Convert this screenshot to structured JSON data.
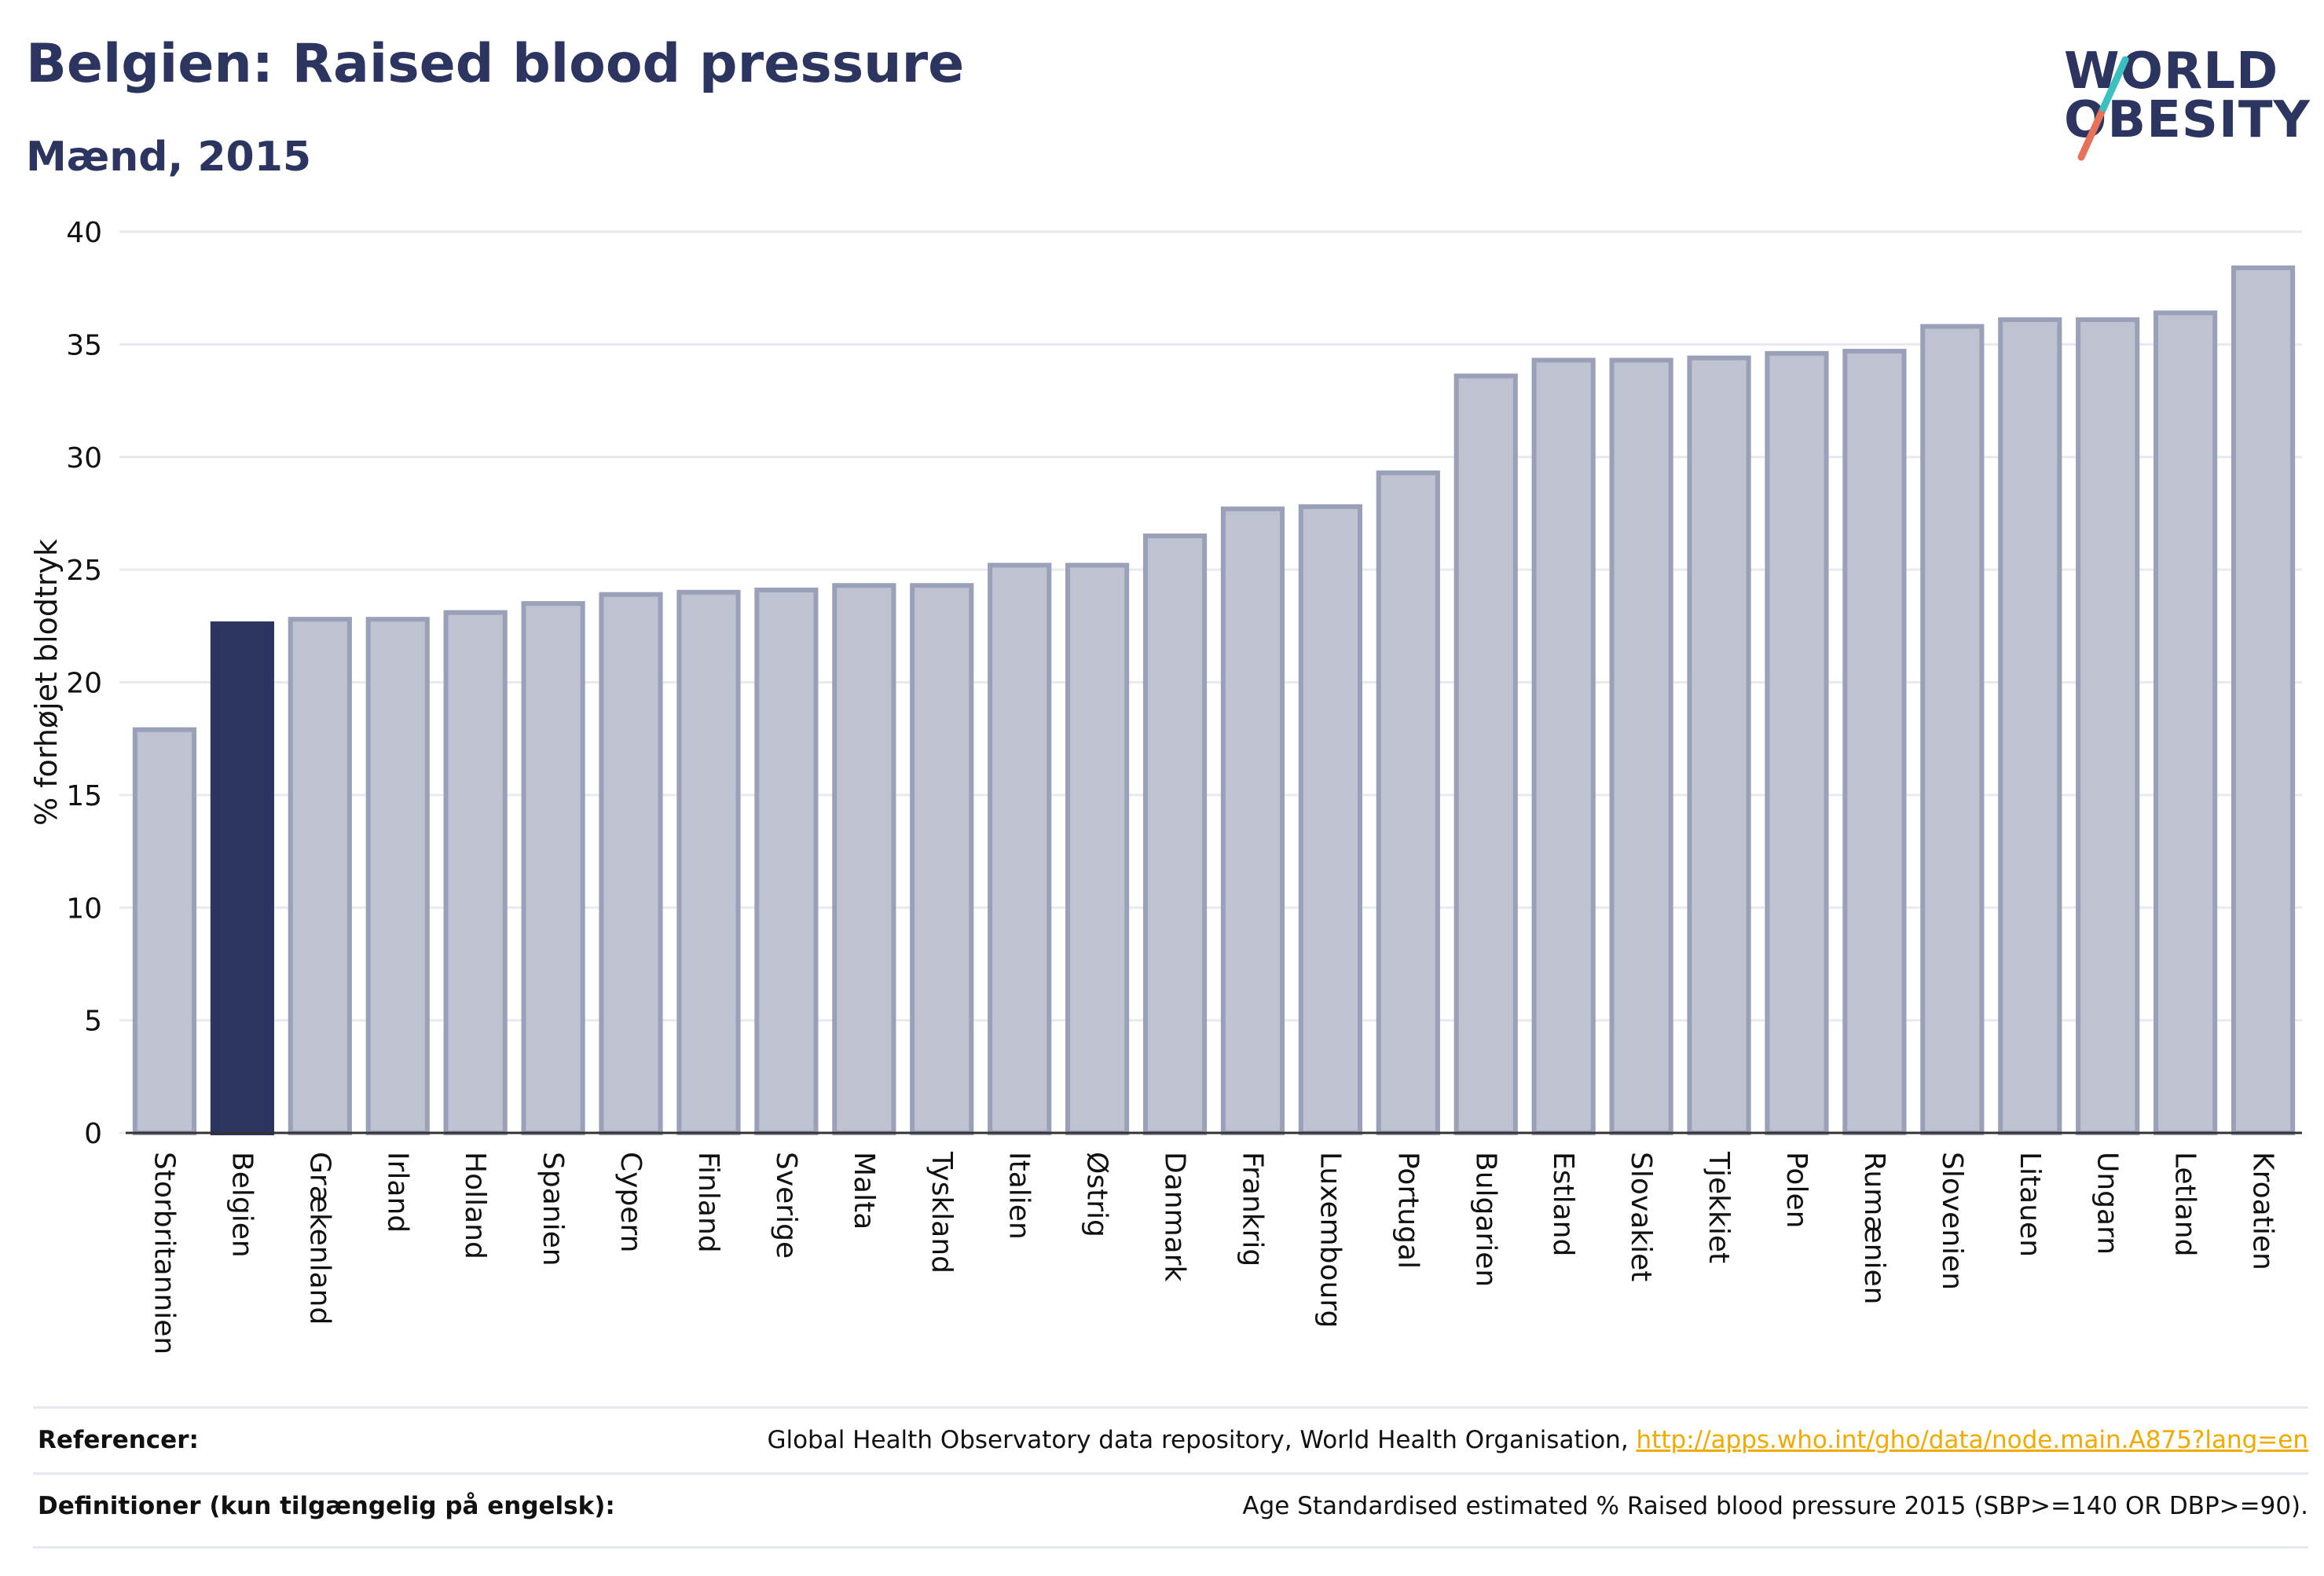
{
  "header": {
    "title": "Belgien: Raised blood pressure",
    "subtitle": "Mænd, 2015"
  },
  "logo": {
    "line1": "WORLD",
    "line2": "OBESITY",
    "colors": {
      "text": "#2b3560",
      "slash_top": "#3cbfbf",
      "slash_bottom": "#e8715a"
    }
  },
  "chart_data": {
    "type": "bar",
    "ylabel": "% forhøjet blodtryk",
    "xlabel": "",
    "ylim": [
      0,
      40
    ],
    "yticks": [
      0,
      5,
      10,
      15,
      20,
      25,
      30,
      35,
      40
    ],
    "grid": true,
    "highlight": "Belgien",
    "colors": {
      "bar": "#bfc3d1",
      "bar_border": "#9aa0b8",
      "highlight": "#2b3560"
    },
    "categories": [
      "Storbritannien",
      "Belgien",
      "Grækenland",
      "Irland",
      "Holland",
      "Spanien",
      "Cypern",
      "Finland",
      "Sverige",
      "Malta",
      "Tyskland",
      "Italien",
      "Østrig",
      "Danmark",
      "Frankrig",
      "Luxembourg",
      "Portugal",
      "Bulgarien",
      "Estland",
      "Slovakiet",
      "Tjekkiet",
      "Polen",
      "Rumænien",
      "Slovenien",
      "Litauen",
      "Ungarn",
      "Letland",
      "Kroatien"
    ],
    "values": [
      17.9,
      22.6,
      22.8,
      22.8,
      23.1,
      23.5,
      23.9,
      24.0,
      24.1,
      24.3,
      24.3,
      25.2,
      25.2,
      26.5,
      27.7,
      27.8,
      29.3,
      33.6,
      34.3,
      34.3,
      34.4,
      34.6,
      34.7,
      35.8,
      36.1,
      36.1,
      36.4,
      38.4
    ]
  },
  "references": {
    "refs_label": "Referencer:",
    "refs_text": "Global Health Observatory data repository, World Health Organisation, ",
    "refs_link": "http://apps.who.int/gho/data/node.main.A875?lang=en",
    "defs_label": "Definitioner (kun tilgængelig på engelsk):",
    "defs_text": "Age Standardised estimated % Raised blood pressure 2015 (SBP>=140 OR DBP>=90)."
  }
}
